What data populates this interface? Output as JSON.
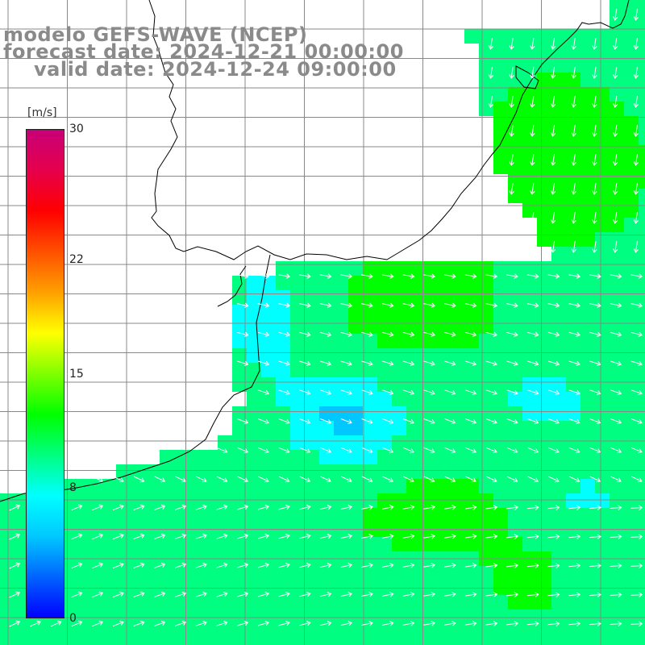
{
  "title": {
    "line1": "modelo GEFS-WAVE (NCEP)",
    "line2": "forecast date: 2024-12-21 00:00:00",
    "line3": "valid date: 2024-12-24 09:00:00"
  },
  "colorbar": {
    "unit": "[m/s]",
    "ticks": [
      "30",
      "22",
      "15",
      "8",
      "0"
    ],
    "tick_values": [
      30,
      22,
      15,
      8,
      0
    ],
    "min": 0,
    "max": 30,
    "colors": [
      "#0000ff",
      "#0064ff",
      "#00c8ff",
      "#00ffff",
      "#00ff80",
      "#00ff00",
      "#80ff00",
      "#ffff00",
      "#ffa000",
      "#ff5000",
      "#ff0000",
      "#e6004c",
      "#c80078"
    ]
  },
  "colors": {
    "land": "#ffffff",
    "coast": "#000000",
    "grid": "#888888",
    "arrow": "#ffffff",
    "title": "#8a8a8a"
  }
}
